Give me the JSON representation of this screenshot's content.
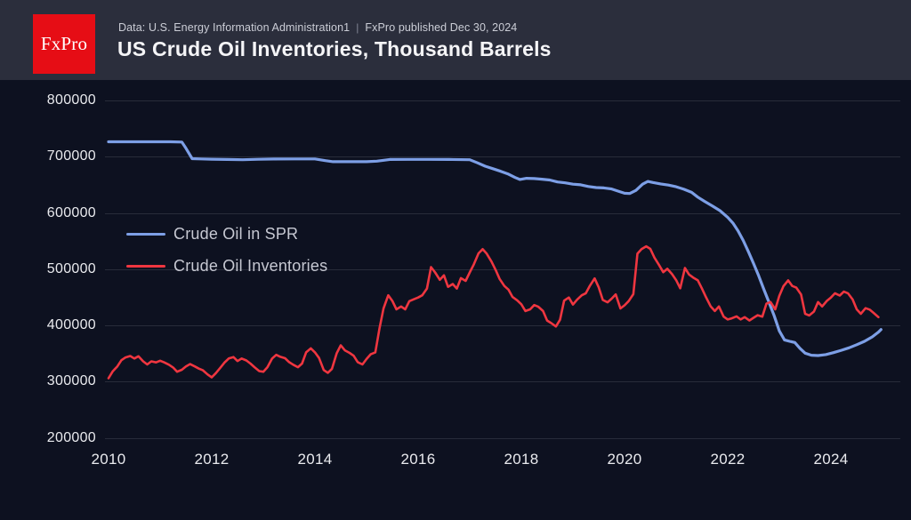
{
  "header": {
    "logo_text": "FxPro",
    "source_line": "Data: U.S. Energy Information Administration1",
    "separator": "|",
    "published_line": "FxPro published Dec 30, 2024",
    "title": "US Crude Oil Inventories, Thousand Barrels"
  },
  "colors": {
    "header_bg": "#2b2e3c",
    "chart_bg": "#0d1120",
    "logo_red": "#e60d15",
    "gridline": "#282c3a",
    "spr_blue": "#7d9fe6",
    "inventories_red": "#ef3640"
  },
  "chart_data": {
    "type": "line",
    "title": "US Crude Oil Inventories, Thousand Barrels",
    "xlabel": "",
    "ylabel": "Thousand Barrels",
    "x_ticks": [
      2010,
      2012,
      2014,
      2016,
      2018,
      2020,
      2022,
      2024
    ],
    "y_ticks": [
      800000,
      700000,
      600000,
      500000,
      400000,
      300000,
      200000
    ],
    "xlim": [
      2010,
      2025
    ],
    "ylim": [
      200000,
      800000
    ],
    "grid": "horizontal-only",
    "legend_position": "upper-left",
    "series": [
      {
        "name": "Crude Oil in SPR",
        "color": "#7d9fe6",
        "points": [
          [
            2010.0,
            726500
          ],
          [
            2010.3,
            726500
          ],
          [
            2010.6,
            726500
          ],
          [
            2010.9,
            726500
          ],
          [
            2011.2,
            726500
          ],
          [
            2011.42,
            726000
          ],
          [
            2011.5,
            715000
          ],
          [
            2011.62,
            696500
          ],
          [
            2011.8,
            696000
          ],
          [
            2012.0,
            695500
          ],
          [
            2012.3,
            695000
          ],
          [
            2012.6,
            694600
          ],
          [
            2012.9,
            695300
          ],
          [
            2013.2,
            695800
          ],
          [
            2013.6,
            696000
          ],
          [
            2014.0,
            696000
          ],
          [
            2014.2,
            693000
          ],
          [
            2014.35,
            691000
          ],
          [
            2014.7,
            691000
          ],
          [
            2015.0,
            691000
          ],
          [
            2015.2,
            692000
          ],
          [
            2015.45,
            695000
          ],
          [
            2015.8,
            695100
          ],
          [
            2016.2,
            695100
          ],
          [
            2016.6,
            695000
          ],
          [
            2017.0,
            694500
          ],
          [
            2017.15,
            689000
          ],
          [
            2017.3,
            683000
          ],
          [
            2017.45,
            678500
          ],
          [
            2017.6,
            674000
          ],
          [
            2017.75,
            669000
          ],
          [
            2017.88,
            663000
          ],
          [
            2017.97,
            659500
          ],
          [
            2018.1,
            661500
          ],
          [
            2018.25,
            661000
          ],
          [
            2018.4,
            660000
          ],
          [
            2018.55,
            658500
          ],
          [
            2018.7,
            655000
          ],
          [
            2018.85,
            653500
          ],
          [
            2019.0,
            651000
          ],
          [
            2019.15,
            650000
          ],
          [
            2019.3,
            647000
          ],
          [
            2019.45,
            645000
          ],
          [
            2019.6,
            644500
          ],
          [
            2019.75,
            642500
          ],
          [
            2019.9,
            638000
          ],
          [
            2020.0,
            635000
          ],
          [
            2020.1,
            634500
          ],
          [
            2020.22,
            640000
          ],
          [
            2020.35,
            651000
          ],
          [
            2020.45,
            656000
          ],
          [
            2020.55,
            654000
          ],
          [
            2020.7,
            651500
          ],
          [
            2020.85,
            649500
          ],
          [
            2021.0,
            646500
          ],
          [
            2021.15,
            642000
          ],
          [
            2021.3,
            636500
          ],
          [
            2021.42,
            628000
          ],
          [
            2021.55,
            620500
          ],
          [
            2021.7,
            612500
          ],
          [
            2021.85,
            604000
          ],
          [
            2022.0,
            592000
          ],
          [
            2022.1,
            582000
          ],
          [
            2022.2,
            568000
          ],
          [
            2022.3,
            551000
          ],
          [
            2022.4,
            531000
          ],
          [
            2022.5,
            510000
          ],
          [
            2022.6,
            488000
          ],
          [
            2022.7,
            464000
          ],
          [
            2022.8,
            441000
          ],
          [
            2022.9,
            417000
          ],
          [
            2023.0,
            390000
          ],
          [
            2023.1,
            374000
          ],
          [
            2023.2,
            371500
          ],
          [
            2023.3,
            369500
          ],
          [
            2023.4,
            359000
          ],
          [
            2023.5,
            350500
          ],
          [
            2023.62,
            346800
          ],
          [
            2023.75,
            346300
          ],
          [
            2023.9,
            348000
          ],
          [
            2024.05,
            351500
          ],
          [
            2024.2,
            355500
          ],
          [
            2024.35,
            360000
          ],
          [
            2024.5,
            365500
          ],
          [
            2024.65,
            371500
          ],
          [
            2024.8,
            379500
          ],
          [
            2024.92,
            388000
          ],
          [
            2024.97,
            392500
          ]
        ]
      },
      {
        "name": "Crude Oil Inventories",
        "color": "#ef3640",
        "points": [
          [
            2010.0,
            306000
          ],
          [
            2010.08,
            318000
          ],
          [
            2010.17,
            327000
          ],
          [
            2010.25,
            338000
          ],
          [
            2010.33,
            343000
          ],
          [
            2010.42,
            345500
          ],
          [
            2010.5,
            341000
          ],
          [
            2010.58,
            345000
          ],
          [
            2010.67,
            336000
          ],
          [
            2010.75,
            330500
          ],
          [
            2010.83,
            336000
          ],
          [
            2010.92,
            334000
          ],
          [
            2011.0,
            337000
          ],
          [
            2011.08,
            334000
          ],
          [
            2011.17,
            330000
          ],
          [
            2011.25,
            325000
          ],
          [
            2011.33,
            317500
          ],
          [
            2011.42,
            321000
          ],
          [
            2011.5,
            327000
          ],
          [
            2011.58,
            331000
          ],
          [
            2011.67,
            327000
          ],
          [
            2011.75,
            323000
          ],
          [
            2011.83,
            320000
          ],
          [
            2011.92,
            312500
          ],
          [
            2012.0,
            307500
          ],
          [
            2012.08,
            315000
          ],
          [
            2012.17,
            325000
          ],
          [
            2012.25,
            334000
          ],
          [
            2012.33,
            341000
          ],
          [
            2012.42,
            343500
          ],
          [
            2012.5,
            336500
          ],
          [
            2012.58,
            341000
          ],
          [
            2012.67,
            337500
          ],
          [
            2012.75,
            332000
          ],
          [
            2012.83,
            325500
          ],
          [
            2012.92,
            318500
          ],
          [
            2013.0,
            317500
          ],
          [
            2013.08,
            325500
          ],
          [
            2013.17,
            341000
          ],
          [
            2013.25,
            347500
          ],
          [
            2013.33,
            344000
          ],
          [
            2013.42,
            341500
          ],
          [
            2013.5,
            334500
          ],
          [
            2013.58,
            330000
          ],
          [
            2013.67,
            325500
          ],
          [
            2013.75,
            332000
          ],
          [
            2013.83,
            352000
          ],
          [
            2013.92,
            359000
          ],
          [
            2014.0,
            352000
          ],
          [
            2014.08,
            342000
          ],
          [
            2014.17,
            320500
          ],
          [
            2014.25,
            315500
          ],
          [
            2014.33,
            322500
          ],
          [
            2014.42,
            350000
          ],
          [
            2014.5,
            364500
          ],
          [
            2014.58,
            355500
          ],
          [
            2014.67,
            351000
          ],
          [
            2014.75,
            346000
          ],
          [
            2014.83,
            334500
          ],
          [
            2014.92,
            330500
          ],
          [
            2015.0,
            340000
          ],
          [
            2015.08,
            348500
          ],
          [
            2015.17,
            352000
          ],
          [
            2015.25,
            394000
          ],
          [
            2015.33,
            430000
          ],
          [
            2015.42,
            453500
          ],
          [
            2015.5,
            443500
          ],
          [
            2015.58,
            428500
          ],
          [
            2015.67,
            433500
          ],
          [
            2015.75,
            428500
          ],
          [
            2015.83,
            443000
          ],
          [
            2015.92,
            446500
          ],
          [
            2016.0,
            449500
          ],
          [
            2016.08,
            453500
          ],
          [
            2016.17,
            465500
          ],
          [
            2016.25,
            503500
          ],
          [
            2016.33,
            494000
          ],
          [
            2016.42,
            481000
          ],
          [
            2016.5,
            489000
          ],
          [
            2016.58,
            468500
          ],
          [
            2016.67,
            473500
          ],
          [
            2016.75,
            465500
          ],
          [
            2016.83,
            484000
          ],
          [
            2016.92,
            479000
          ],
          [
            2017.0,
            494000
          ],
          [
            2017.08,
            508500
          ],
          [
            2017.17,
            528000
          ],
          [
            2017.25,
            535500
          ],
          [
            2017.33,
            527500
          ],
          [
            2017.42,
            513500
          ],
          [
            2017.5,
            499000
          ],
          [
            2017.58,
            482500
          ],
          [
            2017.67,
            470000
          ],
          [
            2017.75,
            463500
          ],
          [
            2017.83,
            450500
          ],
          [
            2017.92,
            444500
          ],
          [
            2018.0,
            437500
          ],
          [
            2018.08,
            425500
          ],
          [
            2018.17,
            428500
          ],
          [
            2018.25,
            436000
          ],
          [
            2018.33,
            433000
          ],
          [
            2018.42,
            425500
          ],
          [
            2018.5,
            408500
          ],
          [
            2018.58,
            404000
          ],
          [
            2018.67,
            398000
          ],
          [
            2018.75,
            410000
          ],
          [
            2018.83,
            444000
          ],
          [
            2018.92,
            449500
          ],
          [
            2019.0,
            437000
          ],
          [
            2019.08,
            445500
          ],
          [
            2019.17,
            453500
          ],
          [
            2019.25,
            457000
          ],
          [
            2019.33,
            470500
          ],
          [
            2019.42,
            483500
          ],
          [
            2019.5,
            467500
          ],
          [
            2019.58,
            445000
          ],
          [
            2019.67,
            441000
          ],
          [
            2019.75,
            447500
          ],
          [
            2019.83,
            455000
          ],
          [
            2019.92,
            430000
          ],
          [
            2020.0,
            435500
          ],
          [
            2020.08,
            443000
          ],
          [
            2020.17,
            455500
          ],
          [
            2020.25,
            527500
          ],
          [
            2020.33,
            535500
          ],
          [
            2020.42,
            540500
          ],
          [
            2020.5,
            536000
          ],
          [
            2020.58,
            520500
          ],
          [
            2020.67,
            507000
          ],
          [
            2020.75,
            494500
          ],
          [
            2020.83,
            500500
          ],
          [
            2020.92,
            491000
          ],
          [
            2021.0,
            480500
          ],
          [
            2021.08,
            466000
          ],
          [
            2021.17,
            502000
          ],
          [
            2021.25,
            490500
          ],
          [
            2021.33,
            485000
          ],
          [
            2021.42,
            480000
          ],
          [
            2021.5,
            465500
          ],
          [
            2021.58,
            450000
          ],
          [
            2021.67,
            433500
          ],
          [
            2021.75,
            425500
          ],
          [
            2021.83,
            433500
          ],
          [
            2021.92,
            415500
          ],
          [
            2022.0,
            410500
          ],
          [
            2022.08,
            412500
          ],
          [
            2022.17,
            416000
          ],
          [
            2022.25,
            410500
          ],
          [
            2022.33,
            414500
          ],
          [
            2022.42,
            408500
          ],
          [
            2022.5,
            413500
          ],
          [
            2022.58,
            418000
          ],
          [
            2022.67,
            415500
          ],
          [
            2022.75,
            438500
          ],
          [
            2022.83,
            441500
          ],
          [
            2022.92,
            428500
          ],
          [
            2023.0,
            452500
          ],
          [
            2023.08,
            469500
          ],
          [
            2023.17,
            480000
          ],
          [
            2023.25,
            470000
          ],
          [
            2023.33,
            467000
          ],
          [
            2023.42,
            455000
          ],
          [
            2023.5,
            420500
          ],
          [
            2023.58,
            417500
          ],
          [
            2023.67,
            424500
          ],
          [
            2023.75,
            441500
          ],
          [
            2023.83,
            433500
          ],
          [
            2023.92,
            443500
          ],
          [
            2024.0,
            449500
          ],
          [
            2024.08,
            457000
          ],
          [
            2024.17,
            453000
          ],
          [
            2024.25,
            460000
          ],
          [
            2024.33,
            457000
          ],
          [
            2024.42,
            446000
          ],
          [
            2024.5,
            428500
          ],
          [
            2024.58,
            420500
          ],
          [
            2024.67,
            430500
          ],
          [
            2024.75,
            428000
          ],
          [
            2024.83,
            422000
          ],
          [
            2024.92,
            414500
          ]
        ]
      }
    ]
  }
}
